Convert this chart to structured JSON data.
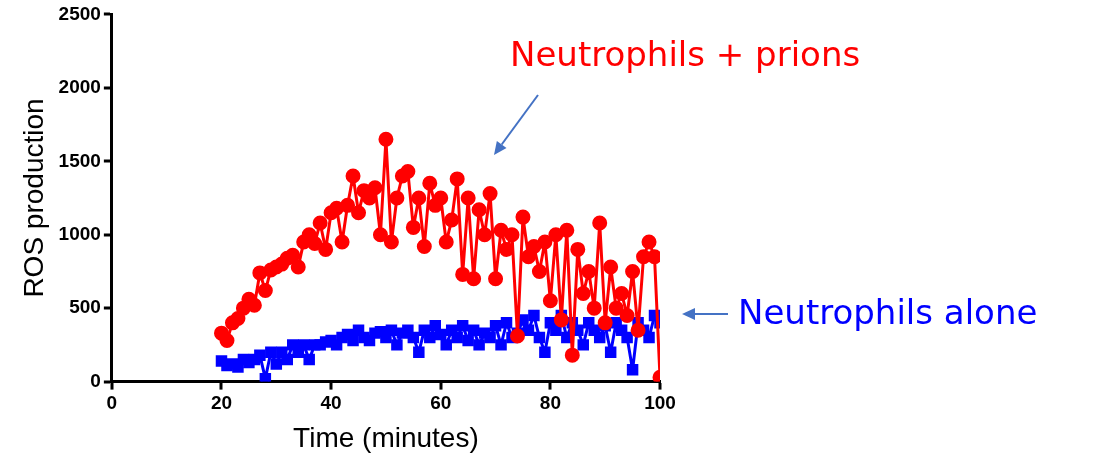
{
  "chart_data": {
    "type": "line",
    "xlabel": "Time (minutes)",
    "ylabel": "ROS production",
    "xlim": [
      0,
      100
    ],
    "xticks": [
      0,
      20,
      40,
      60,
      80,
      100
    ],
    "ylim": [
      0,
      2500
    ],
    "yticks": [
      0,
      500,
      1000,
      1500,
      2000,
      2500
    ],
    "grid": false,
    "legend": false,
    "series": [
      {
        "name": "Neutrophils + prions",
        "color": "#ff0000",
        "marker": "circle",
        "x": [
          20,
          21,
          22,
          23,
          24,
          25,
          26,
          27,
          28,
          29,
          30,
          31,
          32,
          33,
          34,
          35,
          36,
          37,
          38,
          39,
          40,
          41,
          42,
          43,
          44,
          45,
          46,
          47,
          48,
          49,
          50,
          51,
          52,
          53,
          54,
          55,
          56,
          57,
          58,
          59,
          60,
          61,
          62,
          63,
          64,
          65,
          66,
          67,
          68,
          69,
          70,
          71,
          72,
          73,
          74,
          75,
          76,
          77,
          78,
          79,
          80,
          81,
          82,
          83,
          84,
          85,
          86,
          87,
          88,
          89,
          90,
          91,
          92,
          93,
          94,
          95,
          96,
          97,
          98,
          99,
          100
        ],
        "values": [
          330,
          280,
          400,
          430,
          500,
          560,
          520,
          740,
          620,
          760,
          780,
          800,
          840,
          860,
          780,
          950,
          1000,
          940,
          1080,
          900,
          1150,
          1180,
          950,
          1200,
          1400,
          1150,
          1300,
          1250,
          1320,
          1000,
          1650,
          950,
          1250,
          1400,
          1430,
          1050,
          1250,
          920,
          1350,
          1200,
          1250,
          950,
          1100,
          1380,
          730,
          1250,
          700,
          1170,
          1000,
          1280,
          700,
          1030,
          900,
          1000,
          310,
          1120,
          850,
          920,
          750,
          950,
          550,
          1000,
          420,
          1030,
          180,
          900,
          600,
          750,
          500,
          1080,
          400,
          780,
          500,
          600,
          450,
          750,
          350,
          850,
          950,
          850,
          30
        ]
      },
      {
        "name": "Neutrophils alone",
        "color": "#0000ff",
        "marker": "square",
        "x": [
          20,
          21,
          22,
          23,
          24,
          25,
          26,
          27,
          28,
          29,
          30,
          31,
          32,
          33,
          34,
          35,
          36,
          37,
          38,
          39,
          40,
          41,
          42,
          43,
          44,
          45,
          46,
          47,
          48,
          49,
          50,
          51,
          52,
          53,
          54,
          55,
          56,
          57,
          58,
          59,
          60,
          61,
          62,
          63,
          64,
          65,
          66,
          67,
          68,
          69,
          70,
          71,
          72,
          73,
          74,
          75,
          76,
          77,
          78,
          79,
          80,
          81,
          82,
          83,
          84,
          85,
          86,
          87,
          88,
          89,
          90,
          91,
          92,
          93,
          94,
          95,
          96,
          97,
          98,
          99,
          100
        ],
        "values": [
          140,
          110,
          120,
          100,
          150,
          130,
          150,
          180,
          20,
          200,
          120,
          200,
          150,
          250,
          200,
          250,
          150,
          250,
          250,
          270,
          280,
          250,
          300,
          320,
          280,
          350,
          300,
          280,
          330,
          340,
          300,
          350,
          250,
          330,
          350,
          300,
          200,
          350,
          300,
          380,
          320,
          250,
          350,
          300,
          380,
          280,
          350,
          250,
          330,
          300,
          380,
          250,
          400,
          300,
          330,
          420,
          350,
          450,
          300,
          200,
          400,
          350,
          450,
          300,
          400,
          350,
          250,
          400,
          350,
          300,
          380,
          200,
          400,
          350,
          300,
          80,
          400,
          350,
          300,
          450,
          400
        ]
      }
    ]
  }
}
